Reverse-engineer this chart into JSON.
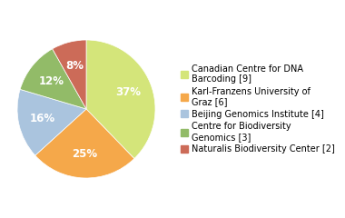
{
  "labels": [
    "Canadian Centre for DNA\nBarcoding [9]",
    "Karl-Franzens University of\nGraz [6]",
    "Beijing Genomics Institute [4]",
    "Centre for Biodiversity\nGenomics [3]",
    "Naturalis Biodiversity Center [2]"
  ],
  "values": [
    37,
    25,
    16,
    12,
    8
  ],
  "colors": [
    "#d4e57a",
    "#f5a84a",
    "#aac4de",
    "#92bb68",
    "#cc6b58"
  ],
  "pct_labels": [
    "37%",
    "25%",
    "16%",
    "12%",
    "8%"
  ],
  "background_color": "#ffffff",
  "legend_fontsize": 7.0,
  "pct_fontsize": 8.5
}
